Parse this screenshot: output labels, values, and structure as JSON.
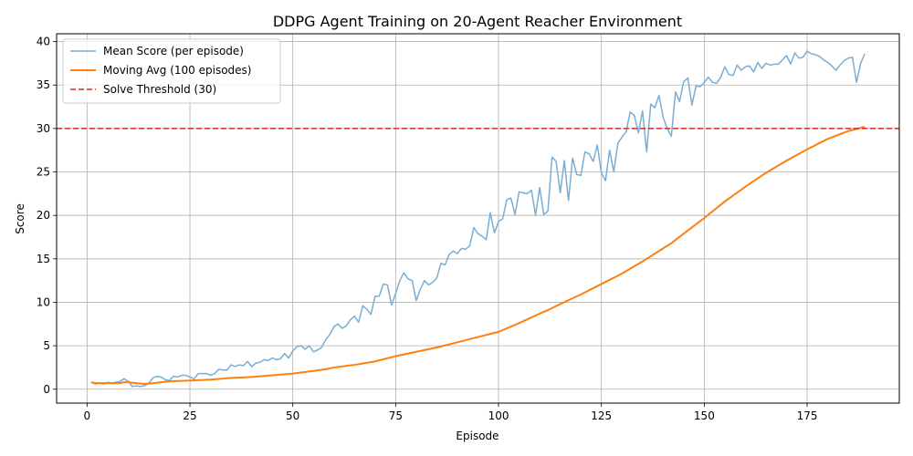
{
  "chart_data": {
    "type": "line",
    "title": "DDPG Agent Training on 20-Agent Reacher Environment",
    "xlabel": "Episode",
    "ylabel": "Score",
    "xlim": [
      -7.4,
      197.4
    ],
    "ylim": [
      -1.6,
      40.9
    ],
    "xticks": [
      0,
      25,
      50,
      75,
      100,
      125,
      150,
      175
    ],
    "yticks": [
      0,
      5,
      10,
      15,
      20,
      25,
      30,
      35,
      40
    ],
    "grid": true,
    "legend_position": "upper-left",
    "series": [
      {
        "name": "Mean Score (per episode)",
        "color": "#7aaed2",
        "x": [
          1,
          2,
          3,
          4,
          5,
          6,
          7,
          8,
          9,
          10,
          11,
          12,
          13,
          14,
          15,
          16,
          17,
          18,
          19,
          20,
          21,
          22,
          23,
          24,
          25,
          26,
          27,
          28,
          29,
          30,
          31,
          32,
          33,
          34,
          35,
          36,
          37,
          38,
          39,
          40,
          41,
          42,
          43,
          44,
          45,
          46,
          47,
          48,
          49,
          50,
          51,
          52,
          53,
          54,
          55,
          56,
          57,
          58,
          59,
          60,
          61,
          62,
          63,
          64,
          65,
          66,
          67,
          68,
          69,
          70,
          71,
          72,
          73,
          74,
          75,
          76,
          77,
          78,
          79,
          80,
          81,
          82,
          83,
          84,
          85,
          86,
          87,
          88,
          89,
          90,
          91,
          92,
          93,
          94,
          95,
          96,
          97,
          98,
          99,
          100,
          101,
          102,
          103,
          104,
          105,
          106,
          107,
          108,
          109,
          110,
          111,
          112,
          113,
          114,
          115,
          116,
          117,
          118,
          119,
          120,
          121,
          122,
          123,
          124,
          125,
          126,
          127,
          128,
          129,
          130,
          131,
          132,
          133,
          134,
          135,
          136,
          137,
          138,
          139,
          140,
          141,
          142,
          143,
          144,
          145,
          146,
          147,
          148,
          149,
          150,
          151,
          152,
          153,
          154,
          155,
          156,
          157,
          158,
          159,
          160,
          161,
          162,
          163,
          164,
          165,
          166,
          167,
          168,
          169,
          170,
          171,
          172,
          173,
          174,
          175,
          176,
          177,
          178,
          179,
          180,
          181,
          182,
          183,
          184,
          185,
          186,
          187,
          188,
          189
        ],
        "values": [
          0.8,
          0.6,
          0.7,
          0.6,
          0.8,
          0.7,
          0.8,
          0.9,
          1.2,
          0.9,
          0.3,
          0.4,
          0.3,
          0.4,
          0.7,
          1.3,
          1.5,
          1.4,
          1.1,
          1.0,
          1.5,
          1.4,
          1.6,
          1.6,
          1.4,
          1.2,
          1.8,
          1.8,
          1.8,
          1.6,
          1.8,
          2.3,
          2.2,
          2.2,
          2.8,
          2.6,
          2.8,
          2.7,
          3.2,
          2.6,
          3.0,
          3.1,
          3.4,
          3.3,
          3.6,
          3.4,
          3.5,
          4.1,
          3.6,
          4.4,
          4.9,
          5.0,
          4.6,
          5.0,
          4.3,
          4.5,
          4.8,
          5.7,
          6.3,
          7.2,
          7.5,
          7.0,
          7.3,
          8.0,
          8.4,
          7.7,
          9.6,
          9.2,
          8.6,
          10.7,
          10.7,
          12.1,
          12.0,
          9.7,
          11.0,
          12.5,
          13.4,
          12.7,
          12.5,
          10.2,
          11.5,
          12.5,
          12.0,
          12.3,
          12.8,
          14.5,
          14.3,
          15.5,
          15.9,
          15.6,
          16.2,
          16.1,
          16.5,
          18.6,
          17.9,
          17.6,
          17.2,
          20.3,
          18.0,
          19.3,
          19.6,
          21.8,
          22.0,
          20.1,
          22.7,
          22.6,
          22.5,
          22.9,
          20.0,
          23.2,
          20.1,
          20.5,
          26.7,
          26.2,
          22.6,
          26.3,
          21.7,
          26.6,
          24.7,
          24.6,
          27.3,
          27.1,
          26.2,
          28.1,
          24.9,
          24.0,
          27.5,
          25.0,
          28.3,
          29.0,
          29.6,
          31.9,
          31.5,
          29.5,
          32.0,
          27.3,
          32.8,
          32.4,
          33.8,
          31.3,
          30.0,
          29.1,
          34.2,
          33.1,
          35.4,
          35.8,
          32.7,
          34.9,
          34.8,
          35.3,
          35.9,
          35.3,
          35.2,
          35.9,
          37.1,
          36.2,
          36.1,
          37.3,
          36.7,
          37.1,
          37.2,
          36.5,
          37.6,
          36.9,
          37.5,
          37.3,
          37.4,
          37.4,
          37.9,
          38.4,
          37.4,
          38.7,
          38.1,
          38.2,
          38.9,
          38.6,
          38.5,
          38.3,
          37.9,
          37.6,
          37.2,
          36.7,
          37.3,
          37.8,
          38.1,
          38.2,
          35.3,
          37.5,
          38.6
        ]
      },
      {
        "name": "Moving Avg (100 episodes)",
        "color": "#ff7f0e",
        "x": [
          1,
          2,
          3,
          4,
          5,
          6,
          7,
          8,
          9,
          10,
          12,
          14,
          16,
          18,
          20,
          25,
          30,
          35,
          40,
          45,
          50,
          55,
          58,
          60,
          65,
          70,
          75,
          80,
          85,
          90,
          95,
          100,
          105,
          110,
          112,
          115,
          120,
          125,
          130,
          135,
          140,
          142,
          145,
          150,
          155,
          160,
          165,
          170,
          175,
          180,
          185,
          189
        ],
        "values": [
          0.8,
          0.7,
          0.7,
          0.7,
          0.7,
          0.7,
          0.7,
          0.7,
          0.8,
          0.8,
          0.7,
          0.6,
          0.7,
          0.8,
          0.9,
          1.0,
          1.1,
          1.3,
          1.4,
          1.6,
          1.8,
          2.1,
          2.3,
          2.5,
          2.8,
          3.2,
          3.8,
          4.3,
          4.8,
          5.4,
          6.0,
          6.6,
          7.6,
          8.7,
          9.1,
          9.8,
          10.9,
          12.1,
          13.3,
          14.7,
          16.2,
          16.8,
          17.9,
          19.7,
          21.6,
          23.3,
          24.9,
          26.3,
          27.6,
          28.8,
          29.7,
          30.2
        ]
      },
      {
        "name": "Solve Threshold (30)",
        "color": "#d62728",
        "type": "hline",
        "value": 30
      }
    ]
  }
}
